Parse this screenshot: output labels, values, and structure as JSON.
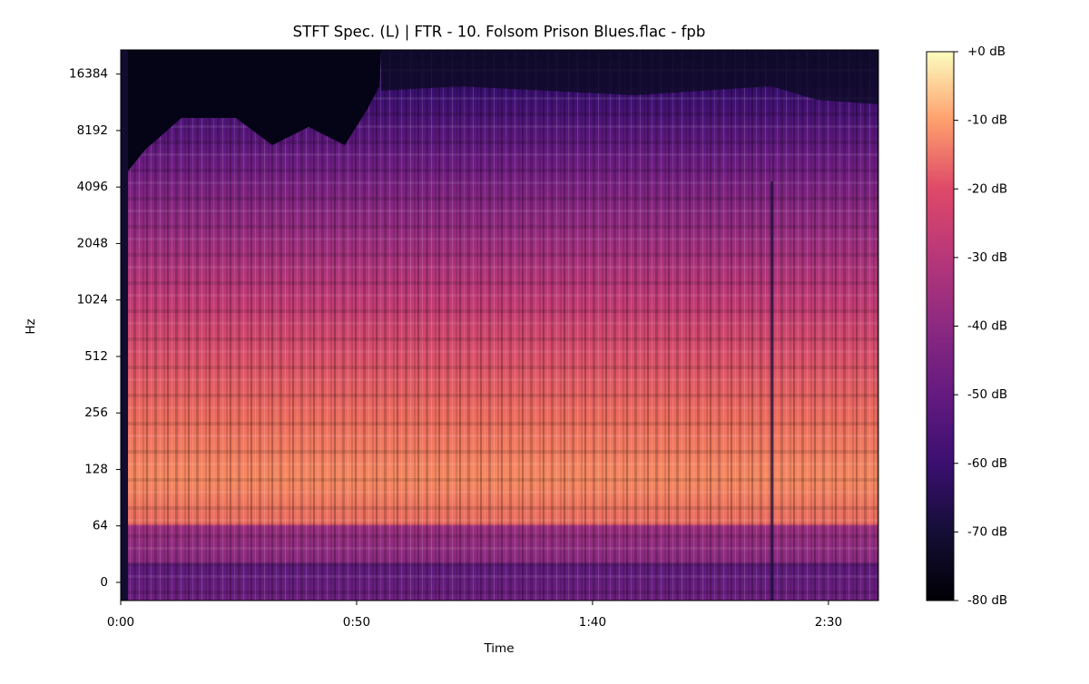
{
  "chart_data": {
    "type": "spectrogram",
    "title": "STFT Spec. (L) | FTR - 10. Folsom Prison Blues.flac - fpb",
    "xlabel": "Time",
    "ylabel": "Hz",
    "xlim": [
      0,
      160.6
    ],
    "xticks": [
      {
        "value": 0,
        "label": "0:00"
      },
      {
        "value": 50,
        "label": "0:50"
      },
      {
        "value": 100,
        "label": "1:40"
      },
      {
        "value": 150,
        "label": "2:30"
      }
    ],
    "yscale": "symlog",
    "ylim": [
      -20.6,
      22050
    ],
    "yticks": [
      0,
      64,
      128,
      256,
      512,
      1024,
      2048,
      4096,
      8192,
      16384
    ],
    "colormap": "magma",
    "colorbar": {
      "lim": [
        -80,
        0
      ],
      "ticks": [
        {
          "value": 0,
          "label": "+0 dB"
        },
        {
          "value": -10,
          "label": "-10 dB"
        },
        {
          "value": -20,
          "label": "-20 dB"
        },
        {
          "value": -30,
          "label": "-30 dB"
        },
        {
          "value": -40,
          "label": "-40 dB"
        },
        {
          "value": -50,
          "label": "-50 dB"
        },
        {
          "value": -60,
          "label": "-60 dB"
        },
        {
          "value": -70,
          "label": "-70 dB"
        },
        {
          "value": -80,
          "label": "-80 dB"
        }
      ]
    }
  }
}
